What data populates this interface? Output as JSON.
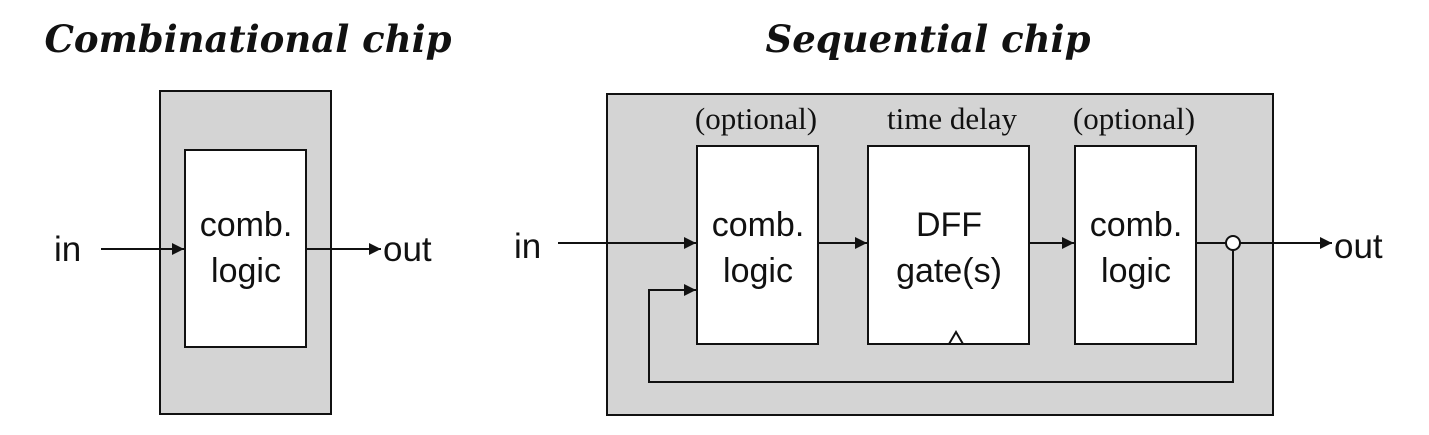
{
  "combinational": {
    "title": "Combinational chip",
    "block": {
      "line1": "comb.",
      "line2": "logic"
    },
    "input_label": "in",
    "output_label": "out"
  },
  "sequential": {
    "title": "Sequential chip",
    "annotations": [
      "(optional)",
      "time delay",
      "(optional)"
    ],
    "block_left": {
      "line1": "comb.",
      "line2": "logic"
    },
    "block_dff": {
      "line1": "DFF",
      "line2": "gate(s)"
    },
    "block_right": {
      "line1": "comb.",
      "line2": "logic"
    },
    "input_label": "in",
    "output_label": "out"
  }
}
